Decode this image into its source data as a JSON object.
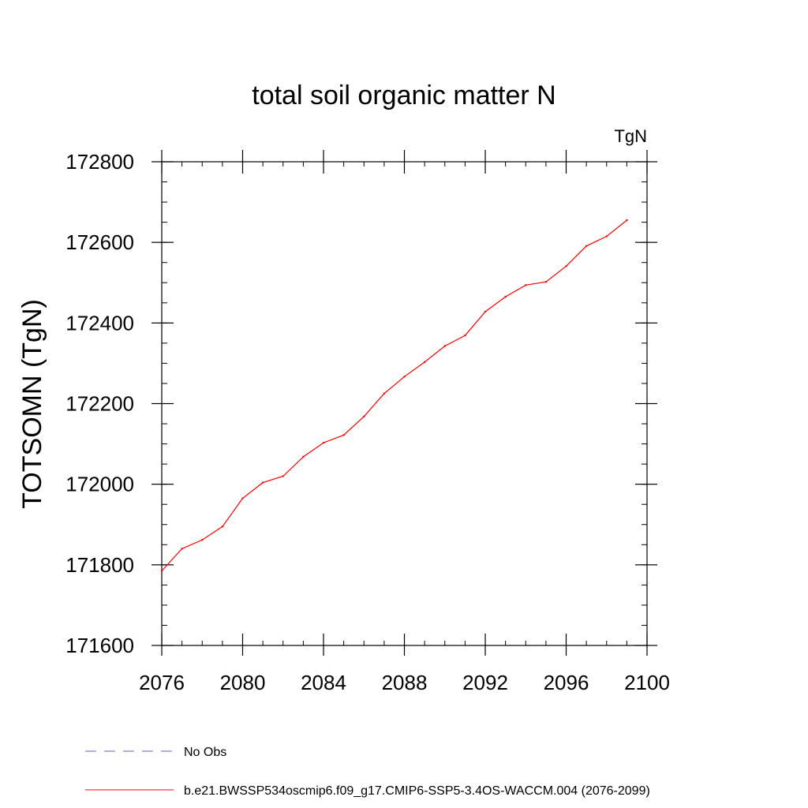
{
  "chart_data": {
    "type": "line",
    "title": "total soil organic matter N",
    "units_label": "TgN",
    "xlabel": "",
    "ylabel": "TOTSOMN  (TgN)",
    "xlim": [
      2076,
      2100
    ],
    "ylim": [
      171600,
      172800
    ],
    "x_ticks": [
      2076,
      2080,
      2084,
      2088,
      2092,
      2096,
      2100
    ],
    "x_tick_labels": [
      "2076",
      "2080",
      "2084",
      "2088",
      "2092",
      "2096",
      "2100"
    ],
    "y_ticks": [
      171600,
      171800,
      172000,
      172200,
      172400,
      172600,
      172800
    ],
    "y_tick_labels": [
      "171600",
      "171800",
      "172000",
      "172200",
      "172400",
      "172600",
      "172800"
    ],
    "x_minor_step": 1,
    "y_minor_step": 50,
    "grid": false,
    "legend_position": "bottom",
    "series": [
      {
        "name": "b.e21.BWSSP534oscmip6.f09_g17.CMIP6-SSP5-3.4OS-WACCM.004 (2076-2099)",
        "color": "#ff0000",
        "dash": "solid",
        "x": [
          2076,
          2077,
          2078,
          2079,
          2080,
          2081,
          2082,
          2083,
          2084,
          2085,
          2086,
          2087,
          2088,
          2089,
          2090,
          2091,
          2092,
          2093,
          2094,
          2095,
          2096,
          2097,
          2098,
          2099
        ],
        "values": [
          171785,
          171840,
          171862,
          171895,
          171965,
          172004,
          172020,
          172068,
          172103,
          172122,
          172168,
          172225,
          172267,
          172303,
          172343,
          172369,
          172428,
          172465,
          172494,
          172502,
          172541,
          172591,
          172615,
          172655
        ]
      }
    ],
    "legend": [
      {
        "label": "No Obs",
        "color": "#6a5acd",
        "dash": "dashed"
      },
      {
        "label": "b.e21.BWSSP534oscmip6.f09_g17.CMIP6-SSP5-3.4OS-WACCM.004 (2076-2099)",
        "color": "#ff0000",
        "dash": "solid"
      }
    ]
  }
}
